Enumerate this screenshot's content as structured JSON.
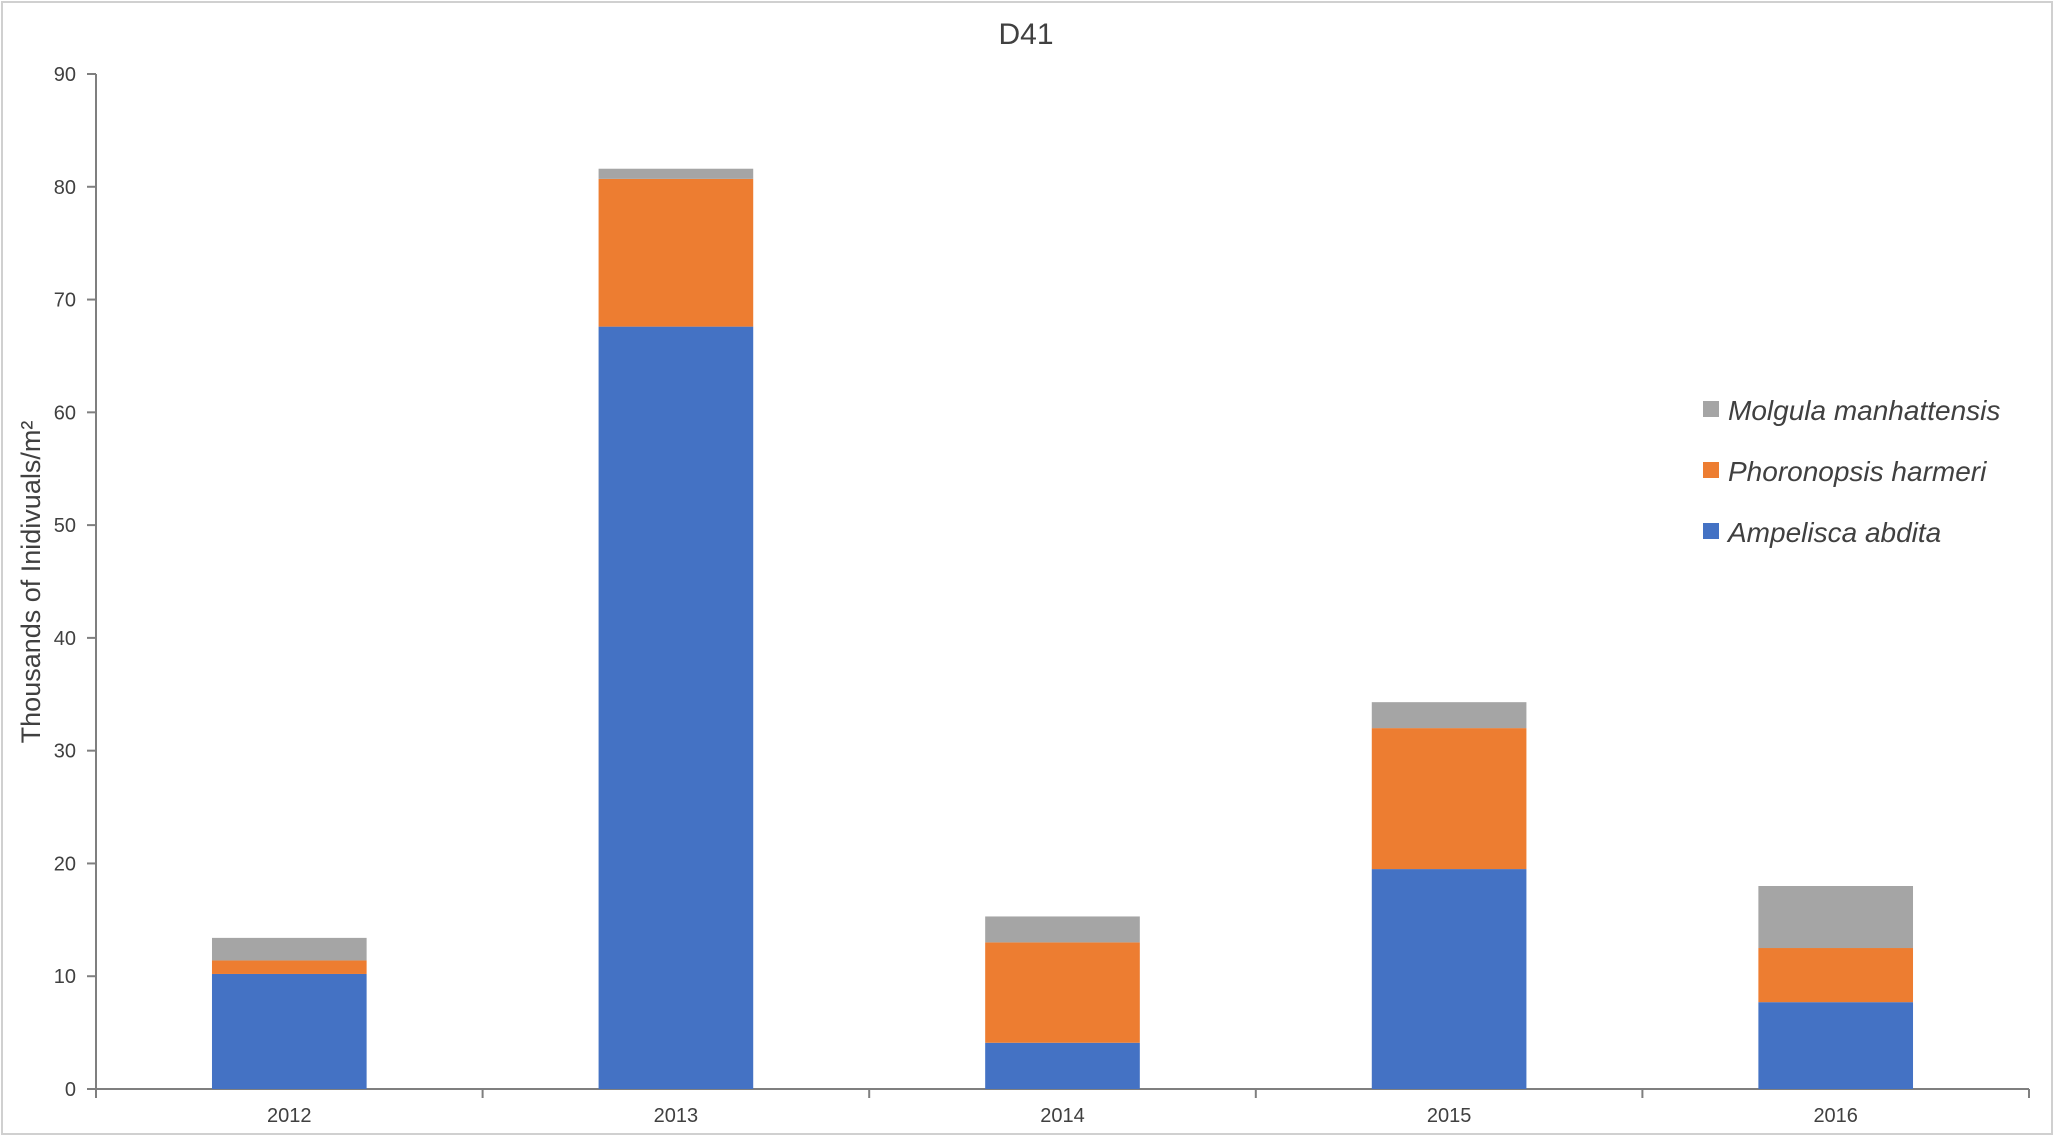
{
  "chart_data": {
    "type": "bar",
    "stacked": true,
    "title": "D41",
    "xlabel": "",
    "ylabel": "Thousands of Inidivuals/m²",
    "ylim": [
      0,
      90
    ],
    "yticks": [
      0,
      10,
      20,
      30,
      40,
      50,
      60,
      70,
      80,
      90
    ],
    "categories": [
      "2012",
      "2013",
      "2014",
      "2015",
      "2016"
    ],
    "series": [
      {
        "name": "Ampelisca abdita",
        "color": "#4472c4",
        "values": [
          10.2,
          67.6,
          4.1,
          19.5,
          7.7
        ]
      },
      {
        "name": "Phoronopsis harmeri",
        "color": "#ed7d31",
        "values": [
          1.2,
          13.1,
          8.9,
          12.5,
          4.8
        ]
      },
      {
        "name": "Molgula manhattensis",
        "color": "#a5a5a5",
        "values": [
          2.0,
          0.9,
          2.3,
          2.3,
          5.5
        ]
      }
    ],
    "legend": {
      "position": "right",
      "order": [
        "Molgula manhattensis",
        "Phoronopsis harmeri",
        "Ampelisca abdita"
      ]
    },
    "grid": false
  }
}
